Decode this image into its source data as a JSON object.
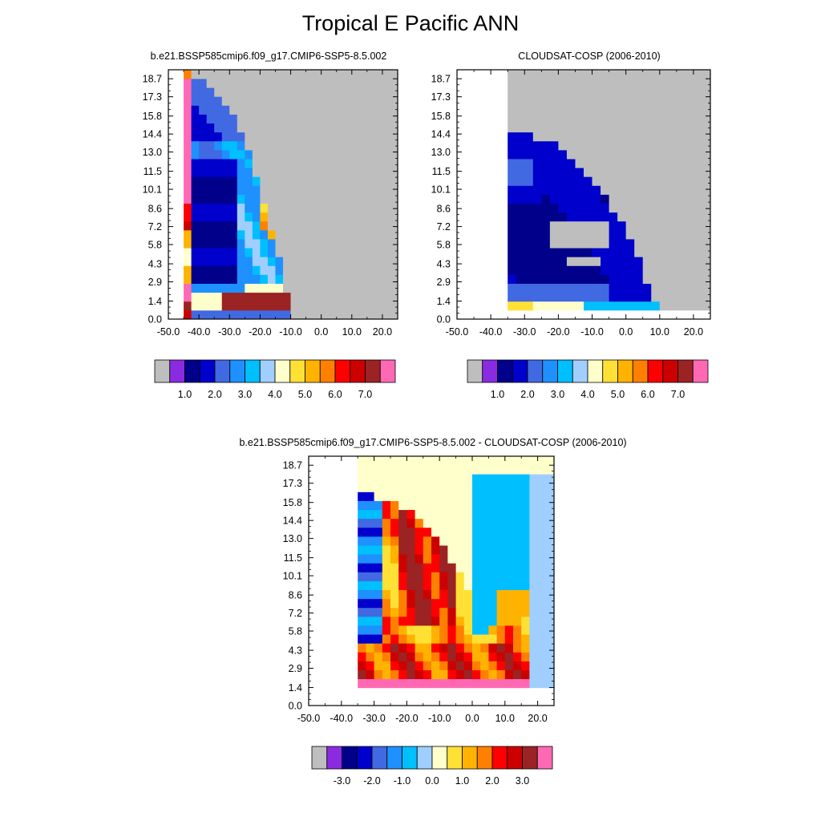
{
  "title": "Tropical E Pacific ANN",
  "palette": {
    "abs": [
      "#bebebe",
      "#8a2be2",
      "#00008b",
      "#0000cd",
      "#4169e1",
      "#1e90ff",
      "#00bfff",
      "#a0cfff",
      "#ffffcc",
      "#ffe135",
      "#ffb300",
      "#ff8000",
      "#ff0000",
      "#cd0000",
      "#9b2323",
      "#ff69b4"
    ],
    "diff": [
      "#bebebe",
      "#8a2be2",
      "#00008b",
      "#0000cd",
      "#4169e1",
      "#1e90ff",
      "#00bfff",
      "#a0cfff",
      "#ffffcc",
      "#ffe135",
      "#ffb300",
      "#ff8000",
      "#ff0000",
      "#cd0000",
      "#9b2323",
      "#ff69b4"
    ]
  },
  "chart_data": [
    {
      "id": "model",
      "type": "heatmap",
      "title": "b.e21.BSSP585cmip6.f09_g17.CMIP6-SSP5-8.5.002",
      "x_ticks": [
        "-50.0",
        "-40.0",
        "-30.0",
        "-20.0",
        "-10.0",
        "0.0",
        "10.0",
        "20.0"
      ],
      "y_ticks": [
        "0.0",
        "1.4",
        "2.9",
        "4.3",
        "5.8",
        "7.2",
        "8.6",
        "10.1",
        "11.5",
        "13.0",
        "14.4",
        "15.8",
        "17.3",
        "18.7"
      ],
      "xlim": [
        -50,
        25
      ],
      "ylim": [
        0,
        19.4
      ],
      "colorbar": {
        "labels": [
          "1.0",
          "2.0",
          "3.0",
          "4.0",
          "5.0",
          "6.0",
          "7.0"
        ],
        "levels": [
          0,
          0.5,
          1,
          1.5,
          2,
          2.5,
          3,
          3.5,
          4,
          4.5,
          5,
          5.5,
          6,
          6.5,
          7
        ]
      }
    },
    {
      "id": "obs",
      "type": "heatmap",
      "title": "CLOUDSAT-COSP (2006-2010)",
      "x_ticks": [
        "-50.0",
        "-40.0",
        "-30.0",
        "-20.0",
        "-10.0",
        "0.0",
        "10.0",
        "20.0"
      ],
      "y_ticks": [
        "0.0",
        "1.4",
        "2.9",
        "4.3",
        "5.8",
        "7.2",
        "8.6",
        "10.1",
        "11.5",
        "13.0",
        "14.4",
        "15.8",
        "17.3",
        "18.7"
      ],
      "xlim": [
        -50,
        25
      ],
      "ylim": [
        0,
        19.4
      ],
      "colorbar": {
        "labels": [
          "1.0",
          "2.0",
          "3.0",
          "4.0",
          "5.0",
          "6.0",
          "7.0"
        ],
        "levels": [
          0,
          0.5,
          1,
          1.5,
          2,
          2.5,
          3,
          3.5,
          4,
          4.5,
          5,
          5.5,
          6,
          6.5,
          7
        ]
      }
    },
    {
      "id": "diff",
      "type": "heatmap",
      "title": "b.e21.BSSP585cmip6.f09_g17.CMIP6-SSP5-8.5.002 - CLOUDSAT-COSP (2006-2010)",
      "x_ticks": [
        "-50.0",
        "-40.0",
        "-30.0",
        "-20.0",
        "-10.0",
        "0.0",
        "10.0",
        "20.0"
      ],
      "y_ticks": [
        "0.0",
        "1.4",
        "2.9",
        "4.3",
        "5.8",
        "7.2",
        "8.6",
        "10.1",
        "11.5",
        "13.0",
        "14.4",
        "15.8",
        "17.3",
        "18.7"
      ],
      "xlim": [
        -50,
        25
      ],
      "ylim": [
        0,
        19.4
      ],
      "colorbar": {
        "labels": [
          "-3.0",
          "-2.0",
          "-1.0",
          "0.0",
          "1.0",
          "2.0",
          "3.0"
        ],
        "levels": [
          -3.5,
          -3,
          -2.5,
          -2,
          -1.5,
          -1,
          -0.5,
          0,
          0.5,
          1,
          1.5,
          2,
          2.5,
          3,
          3.5
        ]
      }
    }
  ]
}
